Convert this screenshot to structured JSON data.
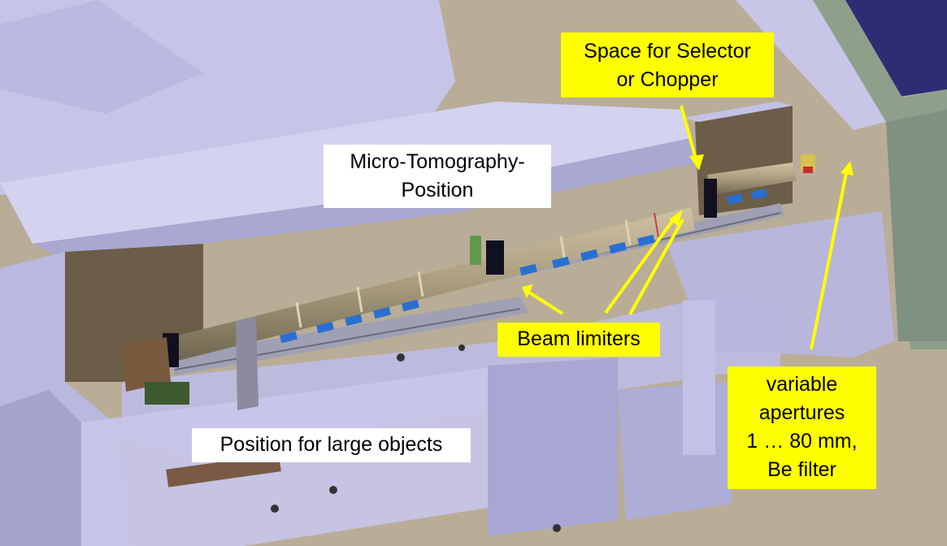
{
  "labels": {
    "selector": {
      "lines": [
        "Space for Selector",
        "or Chopper"
      ]
    },
    "micro": {
      "lines": [
        "Micro-Tomography-",
        "Position"
      ]
    },
    "beam": {
      "lines": [
        "Beam limiters"
      ]
    },
    "large": {
      "lines": [
        "Position for large objects"
      ]
    },
    "apertures": {
      "lines": [
        "variable",
        "apertures",
        "1 … 80 mm,",
        "Be filter"
      ]
    }
  },
  "colors": {
    "callout_yellow": "#ffff00",
    "callout_white": "#ffffff",
    "arrow": "#ffff00",
    "beam_tube": "#a89c7c",
    "shielding": "#b4b3de",
    "floor": "#b9ad98",
    "wall": "#8ea08c",
    "sky": "#2e2d74",
    "filter_plate": "#2a6fd0"
  }
}
